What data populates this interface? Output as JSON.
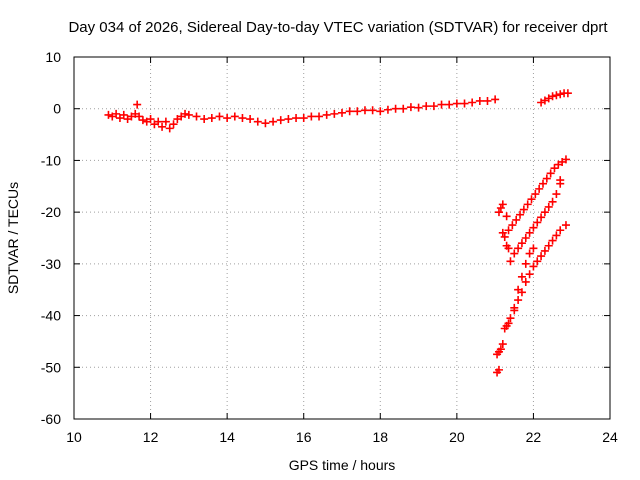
{
  "chart_data": {
    "type": "scatter",
    "title": "Day 034 of 2026, Sidereal Day-to-day VTEC variation (SDTVAR) for receiver dprt",
    "xlabel": "GPS time / hours",
    "ylabel": "SDTVAR / TECUs",
    "xlim": [
      10,
      24
    ],
    "ylim": [
      -60,
      10
    ],
    "xticks": [
      "10",
      "12",
      "14",
      "16",
      "18",
      "20",
      "22",
      "24"
    ],
    "yticks": [
      "10",
      "0",
      "-10",
      "-20",
      "-30",
      "-40",
      "-50",
      "-60"
    ],
    "grid": true,
    "marker": "+",
    "color": "#ff0000",
    "series": [
      {
        "points": [
          [
            10.9,
            -1.2
          ],
          [
            11.0,
            -1.5
          ],
          [
            11.1,
            -1.0
          ],
          [
            11.2,
            -1.8
          ],
          [
            11.3,
            -1.2
          ],
          [
            11.4,
            -2.0
          ],
          [
            11.5,
            -1.5
          ],
          [
            11.6,
            -1.0
          ],
          [
            11.65,
            0.8
          ],
          [
            11.7,
            -1.5
          ],
          [
            11.8,
            -2.2
          ],
          [
            11.9,
            -2.5
          ],
          [
            12.0,
            -2.0
          ],
          [
            12.1,
            -3.0
          ],
          [
            12.2,
            -2.5
          ],
          [
            12.3,
            -3.5
          ],
          [
            12.4,
            -2.5
          ],
          [
            12.5,
            -3.8
          ],
          [
            12.6,
            -3.0
          ],
          [
            12.7,
            -2.0
          ],
          [
            12.8,
            -1.5
          ],
          [
            12.9,
            -1.0
          ],
          [
            13.0,
            -1.2
          ],
          [
            13.2,
            -1.5
          ],
          [
            13.4,
            -2.0
          ],
          [
            13.6,
            -1.8
          ],
          [
            13.8,
            -1.5
          ],
          [
            14.0,
            -1.8
          ],
          [
            14.2,
            -1.5
          ],
          [
            14.4,
            -1.8
          ],
          [
            14.6,
            -2.0
          ],
          [
            14.8,
            -2.5
          ],
          [
            15.0,
            -2.8
          ],
          [
            15.2,
            -2.5
          ],
          [
            15.4,
            -2.2
          ],
          [
            15.6,
            -2.0
          ],
          [
            15.8,
            -1.8
          ],
          [
            16.0,
            -1.8
          ],
          [
            16.2,
            -1.5
          ],
          [
            16.4,
            -1.5
          ],
          [
            16.6,
            -1.2
          ],
          [
            16.8,
            -1.0
          ],
          [
            17.0,
            -0.8
          ],
          [
            17.2,
            -0.5
          ],
          [
            17.4,
            -0.5
          ],
          [
            17.6,
            -0.3
          ],
          [
            17.8,
            -0.3
          ],
          [
            18.0,
            -0.5
          ],
          [
            18.2,
            -0.2
          ],
          [
            18.4,
            0.0
          ],
          [
            18.6,
            0.0
          ],
          [
            18.8,
            0.3
          ],
          [
            19.0,
            0.2
          ],
          [
            19.2,
            0.5
          ],
          [
            19.4,
            0.5
          ],
          [
            19.6,
            0.8
          ],
          [
            19.8,
            0.8
          ],
          [
            20.0,
            1.0
          ],
          [
            20.2,
            1.0
          ],
          [
            20.4,
            1.2
          ],
          [
            20.6,
            1.5
          ],
          [
            20.8,
            1.5
          ],
          [
            21.0,
            1.8
          ],
          [
            22.2,
            1.2
          ],
          [
            22.3,
            1.6
          ],
          [
            22.4,
            2.0
          ],
          [
            22.5,
            2.4
          ],
          [
            22.6,
            2.6
          ],
          [
            22.7,
            2.8
          ],
          [
            22.8,
            3.0
          ],
          [
            22.9,
            3.0
          ],
          [
            21.05,
            -51.0
          ],
          [
            21.1,
            -50.5
          ],
          [
            21.05,
            -47.5
          ],
          [
            21.1,
            -47.0
          ],
          [
            21.15,
            -46.5
          ],
          [
            21.2,
            -45.5
          ],
          [
            21.25,
            -42.5
          ],
          [
            21.3,
            -42.0
          ],
          [
            21.35,
            -41.5
          ],
          [
            21.4,
            -40.5
          ],
          [
            21.5,
            -39.0
          ],
          [
            21.6,
            -37.0
          ],
          [
            21.7,
            -35.5
          ],
          [
            21.8,
            -33.5
          ],
          [
            21.9,
            -32.0
          ],
          [
            22.0,
            -30.5
          ],
          [
            22.1,
            -29.5
          ],
          [
            22.2,
            -28.5
          ],
          [
            22.3,
            -27.5
          ],
          [
            22.4,
            -26.5
          ],
          [
            22.5,
            -25.5
          ],
          [
            22.6,
            -24.5
          ],
          [
            22.7,
            -23.5
          ],
          [
            22.85,
            -22.5
          ],
          [
            21.5,
            -38.5
          ],
          [
            21.6,
            -35.0
          ],
          [
            21.7,
            -32.5
          ],
          [
            21.8,
            -30.0
          ],
          [
            21.9,
            -28.0
          ],
          [
            22.0,
            -27.0
          ],
          [
            21.4,
            -29.5
          ],
          [
            21.5,
            -28.0
          ],
          [
            21.6,
            -27.0
          ],
          [
            21.7,
            -26.0
          ],
          [
            21.8,
            -25.0
          ],
          [
            21.9,
            -24.0
          ],
          [
            22.0,
            -23.0
          ],
          [
            22.1,
            -22.0
          ],
          [
            22.2,
            -21.0
          ],
          [
            22.3,
            -20.0
          ],
          [
            22.4,
            -19.0
          ],
          [
            22.5,
            -18.0
          ],
          [
            22.6,
            -16.5
          ],
          [
            22.7,
            -14.5
          ],
          [
            22.7,
            -13.8
          ],
          [
            21.35,
            -23.5
          ],
          [
            21.45,
            -22.5
          ],
          [
            21.55,
            -21.5
          ],
          [
            21.65,
            -20.5
          ],
          [
            21.75,
            -19.5
          ],
          [
            21.85,
            -18.5
          ],
          [
            21.95,
            -17.5
          ],
          [
            22.05,
            -16.5
          ],
          [
            22.15,
            -15.5
          ],
          [
            22.25,
            -14.5
          ],
          [
            22.35,
            -13.5
          ],
          [
            22.45,
            -12.5
          ],
          [
            22.55,
            -11.5
          ],
          [
            22.65,
            -10.8
          ],
          [
            22.75,
            -10.3
          ],
          [
            22.85,
            -9.8
          ],
          [
            21.1,
            -20.0
          ],
          [
            21.15,
            -19.2
          ],
          [
            21.2,
            -18.5
          ],
          [
            21.25,
            -24.8
          ],
          [
            21.2,
            -24.0
          ],
          [
            21.3,
            -20.8
          ],
          [
            21.35,
            -27.0
          ],
          [
            21.3,
            -26.5
          ]
        ]
      }
    ]
  }
}
